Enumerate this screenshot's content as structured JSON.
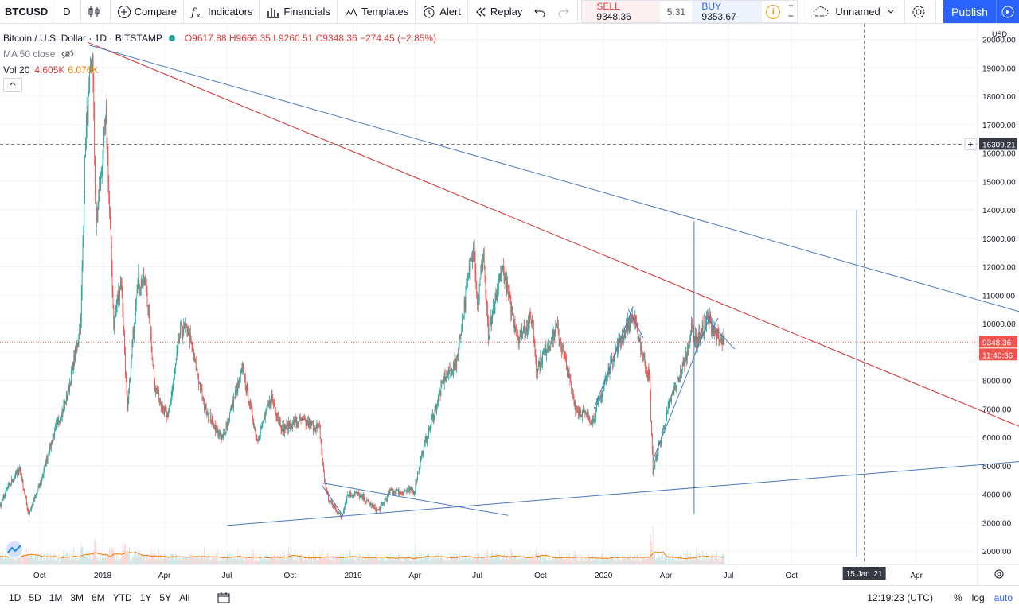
{
  "toolbar": {
    "symbol": "BTCUSD",
    "interval": "D",
    "compare": "Compare",
    "indicators": "Indicators",
    "financials": "Financials",
    "templates": "Templates",
    "alert": "Alert",
    "replay": "Replay",
    "sell_label": "SELL",
    "sell_price": "9348.36",
    "spread": "5.31",
    "buy_label": "BUY",
    "buy_price": "9353.67",
    "layout_name": "Unnamed",
    "publish": "Publish"
  },
  "legend": {
    "title": "Bitcoin / U.S. Dollar · 1D · BITSTAMP",
    "ohlc": "O9617.88 H9666.35 L9260.51 C9348.36 −274.45 (−2.85%)",
    "ma": "MA 50 close",
    "vol_label": "Vol 20",
    "vol_value1": "4.605K",
    "vol_value2": "6.076K"
  },
  "bottombar": {
    "ranges": [
      "1D",
      "5D",
      "1M",
      "3M",
      "6M",
      "YTD",
      "1Y",
      "5Y",
      "All"
    ],
    "clock": "12:19:23 (UTC)",
    "percent": "%",
    "log": "log",
    "auto": "auto"
  },
  "colors": {
    "up": "#26a69a",
    "down": "#ef5350",
    "trend_red": "#d32f2f",
    "trend_blue": "#4a78c2",
    "accent": "#2962ff",
    "ma": "#f57c00"
  },
  "chart_data": {
    "type": "candlestick",
    "currency": "USD",
    "ylim": [
      1500,
      20700
    ],
    "y_ticks": [
      2000,
      3000,
      4000,
      5000,
      6000,
      7000,
      8000,
      9000,
      10000,
      11000,
      12000,
      13000,
      14000,
      15000,
      16000,
      17000,
      18000,
      19000,
      20000
    ],
    "x_ticks": [
      {
        "date": "2017-10-01",
        "label": "Oct"
      },
      {
        "date": "2018-01-01",
        "label": "2018"
      },
      {
        "date": "2018-04-01",
        "label": "Apr"
      },
      {
        "date": "2018-07-01",
        "label": "Jul"
      },
      {
        "date": "2018-10-01",
        "label": "Oct"
      },
      {
        "date": "2019-01-01",
        "label": "2019"
      },
      {
        "date": "2019-04-01",
        "label": "Apr"
      },
      {
        "date": "2019-07-01",
        "label": "Jul"
      },
      {
        "date": "2019-10-01",
        "label": "Oct"
      },
      {
        "date": "2020-01-01",
        "label": "2020"
      },
      {
        "date": "2020-04-01",
        "label": "Apr"
      },
      {
        "date": "2020-07-01",
        "label": "Jul"
      },
      {
        "date": "2020-10-01",
        "label": "Oct"
      },
      {
        "date": "2021-04-01",
        "label": "Apr"
      }
    ],
    "last_price": 9348.36,
    "last_price_label": "9348.36",
    "countdown_label": "11:40:36",
    "crosshair_price": 16309.21,
    "crosshair_price_label": "16309.21",
    "crosshair_date": "2021-01-15",
    "crosshair_date_label": "15 Jan '21",
    "price_path": [
      [
        "2017-07-20",
        2700
      ],
      [
        "2017-08-15",
        4200
      ],
      [
        "2017-09-02",
        4900
      ],
      [
        "2017-09-15",
        3300
      ],
      [
        "2017-10-01",
        4300
      ],
      [
        "2017-10-20",
        6000
      ],
      [
        "2017-11-10",
        7400
      ],
      [
        "2017-11-30",
        10000
      ],
      [
        "2017-12-07",
        16500
      ],
      [
        "2017-12-17",
        19666
      ],
      [
        "2017-12-22",
        13500
      ],
      [
        "2017-12-28",
        14800
      ],
      [
        "2018-01-06",
        17200
      ],
      [
        "2018-01-17",
        10000
      ],
      [
        "2018-01-28",
        11600
      ],
      [
        "2018-02-06",
        6900
      ],
      [
        "2018-02-20",
        11500
      ],
      [
        "2018-03-05",
        11400
      ],
      [
        "2018-03-18",
        7800
      ],
      [
        "2018-04-06",
        6600
      ],
      [
        "2018-04-24",
        9700
      ],
      [
        "2018-05-05",
        9800
      ],
      [
        "2018-05-29",
        7100
      ],
      [
        "2018-06-24",
        5900
      ],
      [
        "2018-07-24",
        8400
      ],
      [
        "2018-08-14",
        5900
      ],
      [
        "2018-09-04",
        7400
      ],
      [
        "2018-09-20",
        6300
      ],
      [
        "2018-10-15",
        6600
      ],
      [
        "2018-11-13",
        6300
      ],
      [
        "2018-11-20",
        4500
      ],
      [
        "2018-11-26",
        3800
      ],
      [
        "2018-12-15",
        3200
      ],
      [
        "2018-12-24",
        4000
      ],
      [
        "2019-01-08",
        4000
      ],
      [
        "2019-02-07",
        3400
      ],
      [
        "2019-02-24",
        4100
      ],
      [
        "2019-03-31",
        4100
      ],
      [
        "2019-04-10",
        5300
      ],
      [
        "2019-05-14",
        8100
      ],
      [
        "2019-05-31",
        8600
      ],
      [
        "2019-06-26",
        13000
      ],
      [
        "2019-07-01",
        10600
      ],
      [
        "2019-07-10",
        12500
      ],
      [
        "2019-07-17",
        9500
      ],
      [
        "2019-08-06",
        12000
      ],
      [
        "2019-08-29",
        9500
      ],
      [
        "2019-09-19",
        10200
      ],
      [
        "2019-09-25",
        8400
      ],
      [
        "2019-10-25",
        9900
      ],
      [
        "2019-11-22",
        7000
      ],
      [
        "2019-12-17",
        6600
      ],
      [
        "2020-01-14",
        8800
      ],
      [
        "2020-02-13",
        10300
      ],
      [
        "2020-03-08",
        8000
      ],
      [
        "2020-03-13",
        4800
      ],
      [
        "2020-04-06",
        7200
      ],
      [
        "2020-04-30",
        8800
      ],
      [
        "2020-05-09",
        9900
      ],
      [
        "2020-05-15",
        9300
      ],
      [
        "2020-06-01",
        10200
      ],
      [
        "2020-06-20",
        9300
      ],
      [
        "2020-06-25",
        9350
      ]
    ],
    "volume_top_value": 6.8,
    "volume_base_value": 0,
    "trend_lines": [
      {
        "color": "red",
        "from": [
          "2017-12-10",
          19900
        ],
        "to": [
          "2021-09-01",
          6350
        ]
      },
      {
        "color": "blue",
        "from": [
          "2017-12-12",
          19800
        ],
        "to": [
          "2021-09-01",
          10400
        ]
      },
      {
        "color": "blue",
        "from": [
          "2018-07-01",
          2900
        ],
        "to": [
          "2021-09-01",
          5150
        ]
      },
      {
        "color": "blue",
        "from": [
          "2018-11-15",
          4400
        ],
        "to": [
          "2019-08-15",
          3250
        ]
      },
      {
        "color": "blue",
        "from": [
          "2018-11-17",
          4300
        ],
        "to": [
          "2018-12-17",
          3250
        ]
      },
      {
        "color": "blue",
        "from": [
          "2019-12-18",
          7000
        ],
        "to": [
          "2020-02-13",
          10600
        ]
      },
      {
        "color": "blue",
        "from": [
          "2020-02-06",
          10500
        ],
        "to": [
          "2020-02-28",
          9500
        ]
      },
      {
        "color": "blue",
        "from": [
          "2020-03-13",
          5200
        ],
        "to": [
          "2020-06-05",
          10300
        ]
      },
      {
        "color": "blue",
        "from": [
          "2020-05-26",
          10300
        ],
        "to": [
          "2020-07-10",
          9100
        ]
      },
      {
        "color": "blue",
        "from": [
          "2020-06-08",
          9800
        ],
        "to": [
          "2020-06-16",
          10200
        ]
      }
    ],
    "vertical_lines": [
      {
        "date": "2020-05-12",
        "from": 3300,
        "to": 13600
      },
      {
        "date": "2021-01-04",
        "from": 1800,
        "to": 14000
      }
    ]
  }
}
